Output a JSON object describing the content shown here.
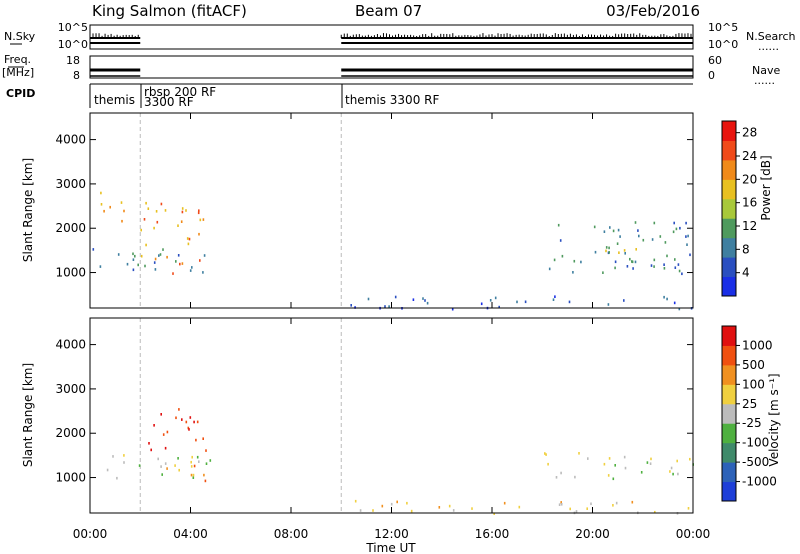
{
  "header": {
    "station": "King Salmon (fitACF)",
    "beam": "Beam 07",
    "date": "03/Feb/2016"
  },
  "side_labels": {
    "nsky": "N.Sky",
    "nsky_ticks": [
      "10^5",
      "10^0"
    ],
    "nsearch": "N.Search",
    "nsearch_ticks": [
      "10^5",
      "10^0"
    ],
    "freq_lines": [
      "Freq.",
      "[MHz]"
    ],
    "freq_ticks": [
      "18",
      "8"
    ],
    "nave": "Nave",
    "nave_ticks": [
      "60",
      "0"
    ],
    "cpid": "CPID",
    "dots": "......"
  },
  "cpid_labels": [
    "themis",
    "rbsp 200 RF",
    "3300 RF",
    "themis 3300 RF"
  ],
  "colors": {
    "power": [
      "#1a2fe6",
      "#2a4fc0",
      "#3f7fa0",
      "#4f9a5e",
      "#a8c83a",
      "#e8c020",
      "#f08a1a",
      "#f04a1a",
      "#e8140e"
    ],
    "velocity": [
      "#1e3fd8",
      "#2d62b8",
      "#3f8a6a",
      "#4fb040",
      "#bcbcbc",
      "#f0d040",
      "#f09020",
      "#f05010",
      "#e01010"
    ]
  },
  "chart_data": [
    {
      "type": "heatmap",
      "quantity": "Power",
      "xlabel": "",
      "ylabel": "Slant Range [km]",
      "x_ticks": [
        "00:00",
        "04:00",
        "08:00",
        "12:00",
        "16:00",
        "20:00",
        "00:00"
      ],
      "y_ticks": [
        1000,
        2000,
        3000,
        4000
      ],
      "ylim": [
        200,
        4600
      ],
      "xlim_hours": [
        0,
        24
      ],
      "colorbar": {
        "label": "Power [dB]",
        "ticks": [
          4,
          8,
          12,
          16,
          20,
          24,
          28
        ],
        "range": [
          0,
          30
        ]
      },
      "regions": [
        {
          "t": [
            0.1,
            4.9
          ],
          "r": [
            1000,
            1600
          ],
          "level": 2
        },
        {
          "t": [
            0.1,
            1.4
          ],
          "r": [
            2100,
            2900
          ],
          "level": 5
        },
        {
          "t": [
            2.0,
            4.6
          ],
          "r": [
            1000,
            2600
          ],
          "level": 6
        },
        {
          "t": [
            10.0,
            24.0
          ],
          "r": [
            200,
            500
          ],
          "level": 1
        },
        {
          "t": [
            18.0,
            24.0
          ],
          "r": [
            1000,
            2200
          ],
          "level": 2
        },
        {
          "t": [
            20.5,
            23.5
          ],
          "r": [
            1100,
            1600
          ],
          "level": 4
        }
      ]
    },
    {
      "type": "heatmap",
      "quantity": "Velocity",
      "xlabel": "Time UT",
      "ylabel": "Slant Range [km]",
      "x_ticks": [
        "00:00",
        "04:00",
        "08:00",
        "12:00",
        "16:00",
        "20:00",
        "00:00"
      ],
      "y_ticks": [
        1000,
        2000,
        3000,
        4000
      ],
      "ylim": [
        200,
        4600
      ],
      "xlim_hours": [
        0,
        24
      ],
      "colorbar": {
        "label": "Velocity [m s⁻¹]",
        "ticks": [
          "1000",
          "500",
          "100",
          "25",
          "-25",
          "-100",
          "-500",
          "-1000"
        ]
      },
      "regions": [
        {
          "t": [
            0.1,
            4.9
          ],
          "r": [
            1000,
            1600
          ],
          "level": 4
        },
        {
          "t": [
            2.0,
            4.6
          ],
          "r": [
            1600,
            2600
          ],
          "level": 8
        },
        {
          "t": [
            3.0,
            4.6
          ],
          "r": [
            800,
            1300
          ],
          "level": 6
        },
        {
          "t": [
            10.0,
            24.0
          ],
          "r": [
            200,
            500
          ],
          "level": 5
        },
        {
          "t": [
            18.0,
            24.0
          ],
          "r": [
            1000,
            1600
          ],
          "level": 4
        }
      ]
    }
  ]
}
